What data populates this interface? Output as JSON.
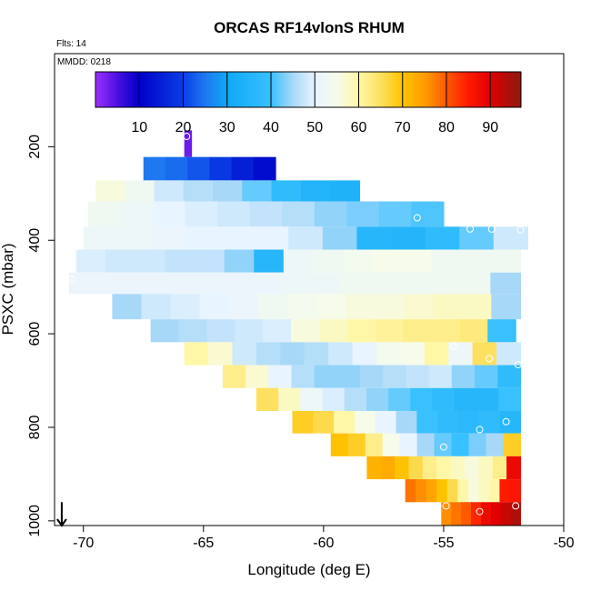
{
  "chart_data": {
    "type": "heatmap",
    "title": "ORCAS RF14vlonS RHUM",
    "flights_label": "Flts: 14",
    "date_label": "MMDD: 0218",
    "xlabel": "Longitude (deg E)",
    "ylabel": "PSXC (mbar)",
    "xlim": [
      -71.2,
      -50
    ],
    "ylim": [
      1010,
      1
    ],
    "x_ticks": [
      -70,
      -65,
      -60,
      -55,
      -50
    ],
    "y_ticks": [
      200,
      400,
      600,
      800,
      1000
    ],
    "colorbar": {
      "range": [
        0,
        97
      ],
      "ticks": [
        10,
        20,
        30,
        40,
        50,
        60,
        70,
        80,
        90
      ],
      "stops": [
        {
          "v": 0,
          "c": "#9b30ff"
        },
        {
          "v": 5,
          "c": "#4b10e0"
        },
        {
          "v": 10,
          "c": "#0000c8"
        },
        {
          "v": 20,
          "c": "#0a3ee6"
        },
        {
          "v": 25,
          "c": "#1e78f0"
        },
        {
          "v": 30,
          "c": "#10a8f5"
        },
        {
          "v": 40,
          "c": "#38c0ff"
        },
        {
          "v": 45,
          "c": "#a8d8f8"
        },
        {
          "v": 50,
          "c": "#e8f4ff"
        },
        {
          "v": 55,
          "c": "#f6fbea"
        },
        {
          "v": 60,
          "c": "#fff7a8"
        },
        {
          "v": 65,
          "c": "#fde060"
        },
        {
          "v": 70,
          "c": "#ffc200"
        },
        {
          "v": 75,
          "c": "#ff9c00"
        },
        {
          "v": 80,
          "c": "#ff5a00"
        },
        {
          "v": 85,
          "c": "#ff1a00"
        },
        {
          "v": 90,
          "c": "#e00000"
        },
        {
          "v": 97,
          "c": "#8b1a10"
        }
      ]
    },
    "bands": [
      {
        "p_top": 165,
        "p_bot": 222,
        "x0": -65.8,
        "x1": -65.5,
        "values": [
          3
        ]
      },
      {
        "p_top": 222,
        "p_bot": 272,
        "x0": -67.5,
        "x1": -62.0,
        "values": [
          25,
          24,
          22,
          19,
          15,
          12
        ]
      },
      {
        "p_top": 272,
        "p_bot": 317,
        "x0": -69.5,
        "x1": -58.5,
        "values": [
          56,
          53,
          48,
          46,
          45,
          42,
          38,
          35,
          34
        ]
      },
      {
        "p_top": 317,
        "p_bot": 371,
        "x0": -69.8,
        "x1": -55.0,
        "values": [
          53,
          52,
          50,
          49,
          48,
          47,
          46,
          44,
          43,
          42,
          41
        ]
      },
      {
        "p_top": 371,
        "p_bot": 420,
        "x0": -70.0,
        "x1": -51.5,
        "values": [
          52,
          52,
          51,
          50,
          50,
          50,
          48,
          44,
          36,
          35,
          38,
          42,
          48
        ]
      },
      {
        "p_top": 420,
        "p_bot": 469,
        "x0": -70.3,
        "x1": -51.8,
        "values": [
          49,
          48,
          48,
          47,
          47,
          44,
          36,
          52,
          53,
          54,
          55,
          55,
          53,
          53,
          53
        ]
      },
      {
        "p_top": 469,
        "p_bot": 515,
        "x0": -70.6,
        "x1": -51.8,
        "values": [
          51,
          51,
          51,
          51,
          51,
          51,
          51,
          52,
          52,
          53,
          53,
          53,
          53,
          53,
          45
        ]
      },
      {
        "p_top": 515,
        "p_bot": 569,
        "x0": -68.8,
        "x1": -51.8,
        "values": [
          45,
          48,
          49,
          50,
          51,
          53,
          54,
          55,
          56,
          56,
          57,
          58,
          58,
          45
        ]
      },
      {
        "p_top": 569,
        "p_bot": 618,
        "x0": -67.2,
        "x1": -52.0,
        "values": [
          45,
          46,
          47,
          48,
          49,
          56,
          58,
          60,
          61,
          62,
          62,
          63,
          40
        ]
      },
      {
        "p_top": 618,
        "p_bot": 667,
        "x0": -65.8,
        "x1": -51.8,
        "values": [
          60,
          57,
          48,
          46,
          45,
          46,
          48,
          50,
          54,
          55,
          60,
          52,
          65,
          48
        ]
      },
      {
        "p_top": 667,
        "p_bot": 716,
        "x0": -64.2,
        "x1": -51.8,
        "values": [
          62,
          57,
          50,
          46,
          44,
          44,
          45,
          46,
          47,
          48,
          44,
          42,
          38
        ]
      },
      {
        "p_top": 716,
        "p_bot": 765,
        "x0": -62.8,
        "x1": -51.8,
        "values": [
          65,
          58,
          52,
          49,
          46,
          44,
          42,
          40,
          38,
          36,
          36,
          40
        ]
      },
      {
        "p_top": 765,
        "p_bot": 813,
        "x0": -61.3,
        "x1": -51.8,
        "values": [
          68,
          66,
          60,
          55,
          50,
          45,
          40,
          38,
          37,
          38,
          36
        ]
      },
      {
        "p_top": 813,
        "p_bot": 862,
        "x0": -59.7,
        "x1": -51.8,
        "values": [
          70,
          68,
          62,
          55,
          50,
          45,
          42,
          40,
          43,
          45,
          68
        ]
      },
      {
        "p_top": 862,
        "p_bot": 911,
        "x0": -58.2,
        "x1": -51.8,
        "values": [
          72,
          73,
          70,
          66,
          62,
          60,
          58,
          56,
          58,
          62,
          88
        ]
      },
      {
        "p_top": 911,
        "p_bot": 960,
        "x0": -56.6,
        "x1": -51.8,
        "values": [
          78,
          76,
          74,
          70,
          66,
          60,
          56,
          58,
          60,
          85,
          86
        ]
      },
      {
        "p_top": 960,
        "p_bot": 1010,
        "x0": -55.1,
        "x1": -51.8,
        "values": [
          76,
          78,
          80,
          84,
          88,
          90,
          92,
          94
        ]
      }
    ],
    "markers": [
      {
        "lon": -65.7,
        "p": 178
      },
      {
        "lon": -69.6,
        "p": 300
      },
      {
        "lon": -56.1,
        "p": 352
      },
      {
        "lon": -53.9,
        "p": 376
      },
      {
        "lon": -53.0,
        "p": 376
      },
      {
        "lon": -51.8,
        "p": 378
      },
      {
        "lon": -70.5,
        "p": 483
      },
      {
        "lon": -54.6,
        "p": 627
      },
      {
        "lon": -53.1,
        "p": 653
      },
      {
        "lon": -51.9,
        "p": 666
      },
      {
        "lon": -52.4,
        "p": 788
      },
      {
        "lon": -53.5,
        "p": 805
      },
      {
        "lon": -55.0,
        "p": 842
      },
      {
        "lon": -54.9,
        "p": 968
      },
      {
        "lon": -53.5,
        "p": 980
      },
      {
        "lon": -52.0,
        "p": 968
      }
    ],
    "arrow": {
      "lon": -70.9,
      "p_from": 960,
      "p_to": 1010
    }
  }
}
